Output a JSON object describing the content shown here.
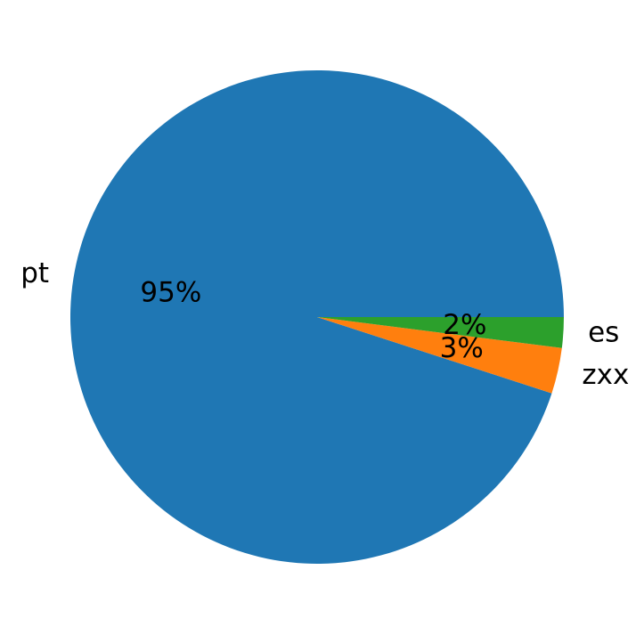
{
  "chart_data": {
    "type": "pie",
    "categories": [
      "pt",
      "zxx",
      "es"
    ],
    "values": [
      95,
      3,
      2
    ],
    "value_labels": [
      "95%",
      "3%",
      "2%"
    ],
    "colors": [
      "#1f77b4",
      "#ff7f0e",
      "#2ca02c"
    ]
  }
}
